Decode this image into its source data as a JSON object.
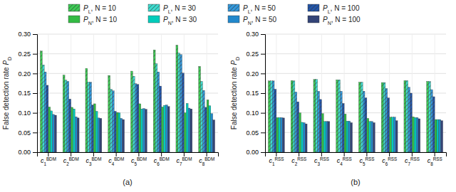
{
  "chart_data": [
    {
      "type": "bar",
      "xlabel": "(a)",
      "ylabel": "False detection rate PD",
      "categories": [
        "c1BDM",
        "c2BDM",
        "c3BDM",
        "c4BDM",
        "c5BDM",
        "c6BDM",
        "c7BDM",
        "c8BDM"
      ],
      "ylim": [
        0.0,
        0.3
      ],
      "yticks": [
        {
          "value": 0.0,
          "label": "0.00"
        },
        0.05,
        {
          "value": 0.1,
          "label": "0.10"
        },
        0.15,
        {
          "value": 0.2,
          "label": "0.20"
        },
        0.25,
        {
          "value": 0.3,
          "label": "0.30"
        }
      ],
      "grid": true,
      "legend": "top",
      "series": [
        {
          "name": "PL, N = 10",
          "color": "#3dcc55",
          "values": [
            0.257,
            0.196,
            0.213,
            0.195,
            0.206,
            0.26,
            0.272,
            0.218
          ]
        },
        {
          "name": "PL, N = 30",
          "color": "#3dddd0",
          "values": [
            0.222,
            0.183,
            0.178,
            0.16,
            0.193,
            0.225,
            0.252,
            0.18
          ]
        },
        {
          "name": "PL, N = 50",
          "color": "#3399dd",
          "values": [
            0.204,
            0.18,
            0.178,
            0.156,
            0.174,
            0.204,
            0.248,
            0.157
          ]
        },
        {
          "name": "PL, N = 100",
          "color": "#2255aa",
          "values": [
            0.17,
            0.135,
            0.12,
            0.104,
            0.172,
            0.168,
            0.201,
            0.114
          ]
        },
        {
          "name": "PN, N = 10",
          "color": "#33bb44",
          "values": [
            0.115,
            0.114,
            0.123,
            0.101,
            0.123,
            0.115,
            0.1,
            0.133
          ]
        },
        {
          "name": "PN, N = 30",
          "color": "#00ccbb",
          "values": [
            0.105,
            0.11,
            0.104,
            0.1,
            0.11,
            0.119,
            0.124,
            0.118
          ]
        },
        {
          "name": "PN, N = 50",
          "color": "#2288cc",
          "values": [
            0.096,
            0.09,
            0.087,
            0.086,
            0.111,
            0.12,
            0.112,
            0.098
          ]
        },
        {
          "name": "PN, N = 100",
          "color": "#334477",
          "values": [
            0.094,
            0.087,
            0.086,
            0.083,
            0.109,
            0.116,
            0.11,
            0.082
          ]
        }
      ]
    },
    {
      "type": "bar",
      "xlabel": "(b)",
      "ylabel": "False detection rate PD",
      "categories": [
        "c1RSS",
        "c2RSS",
        "c3RSS",
        "c4RSS",
        "c5RSS",
        "c6RSS",
        "c7RSS",
        "c8RSS"
      ],
      "ylim": [
        0.0,
        0.3
      ],
      "yticks": [
        {
          "value": 0.0,
          "label": "0.00"
        },
        0.05,
        {
          "value": 0.1,
          "label": "0.10"
        },
        0.15,
        {
          "value": 0.2,
          "label": "0.20"
        },
        0.25,
        {
          "value": 0.3,
          "label": "0.30"
        }
      ],
      "grid": true,
      "series": [
        {
          "color": "#3dcc55",
          "values": [
            0.181,
            0.182,
            0.185,
            0.184,
            0.178,
            0.177,
            0.182,
            0.18
          ]
        },
        {
          "color": "#3dddd0",
          "values": [
            0.181,
            0.181,
            0.185,
            0.184,
            0.178,
            0.177,
            0.182,
            0.18
          ]
        },
        {
          "color": "#3399dd",
          "values": [
            0.181,
            0.153,
            0.155,
            0.155,
            0.155,
            0.162,
            0.165,
            0.159
          ]
        },
        {
          "color": "#2255aa",
          "values": [
            0.16,
            0.128,
            0.134,
            0.124,
            0.138,
            0.138,
            0.15,
            0.141
          ]
        },
        {
          "color": "#33bb44",
          "values": [
            0.088,
            0.1,
            0.098,
            0.097,
            0.086,
            0.089,
            0.09,
            0.083
          ]
        },
        {
          "color": "#00ccbb",
          "values": [
            0.088,
            0.076,
            0.078,
            0.079,
            0.078,
            0.089,
            0.088,
            0.083
          ]
        },
        {
          "color": "#2288cc",
          "values": [
            0.088,
            0.075,
            0.078,
            0.079,
            0.078,
            0.089,
            0.088,
            0.083
          ]
        },
        {
          "color": "#334477",
          "values": [
            0.087,
            0.072,
            0.078,
            0.075,
            0.075,
            0.08,
            0.085,
            0.08
          ]
        }
      ]
    }
  ]
}
